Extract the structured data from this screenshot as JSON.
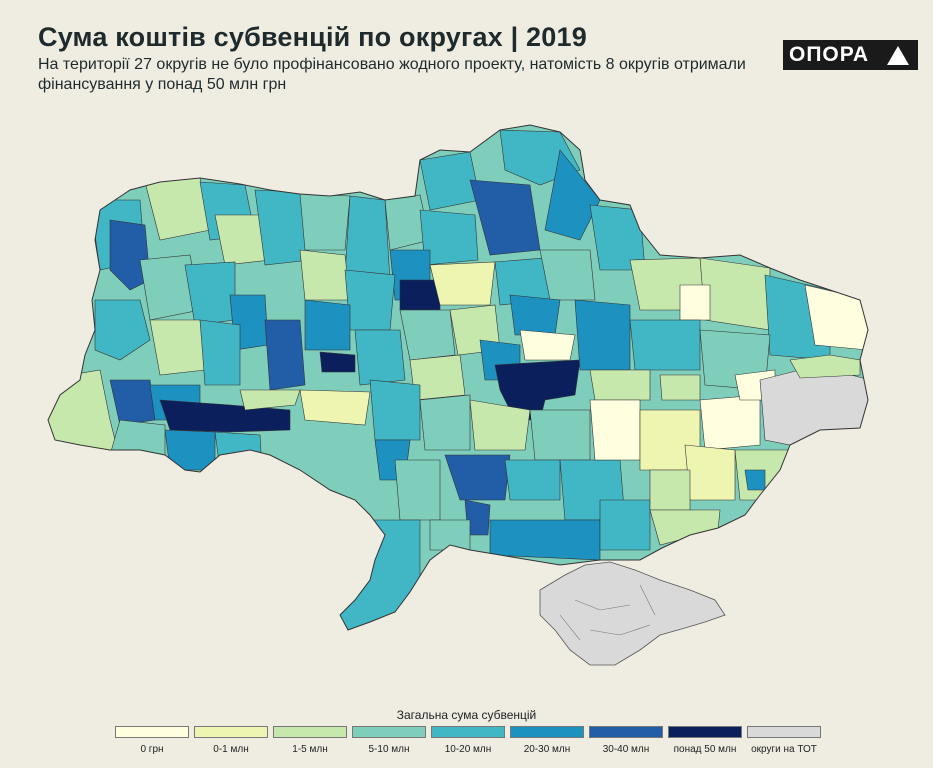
{
  "header": {
    "title": "Сума коштів субвенцій по округах | 2019",
    "subtitle": "На території 27 округів не було профінансовано жодного проекту, натомість 8 округів отримали фінансування у понад 50 млн грн"
  },
  "logo": {
    "text": "ОПОРА",
    "icon": "triangle-icon"
  },
  "legend": {
    "title": "Загальна сума субвенцій",
    "items": [
      {
        "label": "0 грн",
        "color": "#ffffe0"
      },
      {
        "label": "0-1 млн",
        "color": "#eef5b0"
      },
      {
        "label": "1-5 млн",
        "color": "#c7e8ad"
      },
      {
        "label": "5-10 млн",
        "color": "#7fcdbb"
      },
      {
        "label": "10-20 млн",
        "color": "#41b6c4"
      },
      {
        "label": "20-30 млн",
        "color": "#1d91c0"
      },
      {
        "label": "30-40 млн",
        "color": "#225ea8"
      },
      {
        "label": "понад 50 млн",
        "color": "#0b1f5c"
      },
      {
        "label": "округи на ТОТ",
        "color": "#d9d9d9"
      }
    ]
  }
}
